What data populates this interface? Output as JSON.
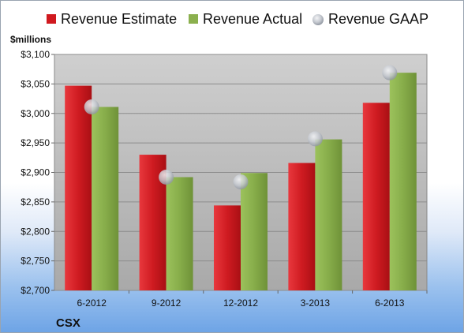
{
  "chart_data": {
    "type": "bar",
    "title": "",
    "unit_label": "$millions",
    "footer_label": "CSX",
    "categories": [
      "6-2012",
      "9-2012",
      "12-2012",
      "3-2013",
      "6-2013"
    ],
    "series": [
      {
        "name": "Revenue Estimate",
        "kind": "bar",
        "color": "#d0191f",
        "values": [
          3047,
          2930,
          2844,
          2916,
          3018
        ]
      },
      {
        "name": "Revenue Actual",
        "kind": "bar",
        "color": "#8bb04e",
        "values": [
          3011,
          2892,
          2899,
          2956,
          3069
        ]
      },
      {
        "name": "Revenue GAAP",
        "kind": "marker",
        "color": "#b8bcc4",
        "values": [
          3011,
          2892,
          2884,
          2957,
          3069
        ]
      }
    ],
    "ylim": [
      2700,
      3100
    ],
    "yticks": [
      "$2,700",
      "$2,750",
      "$2,800",
      "$2,850",
      "$2,900",
      "$2,950",
      "$3,000",
      "$3,050",
      "$3,100"
    ],
    "ytick_values": [
      2700,
      2750,
      2800,
      2850,
      2900,
      2950,
      3000,
      3050,
      3100
    ],
    "grid": true,
    "legend_position": "top"
  }
}
